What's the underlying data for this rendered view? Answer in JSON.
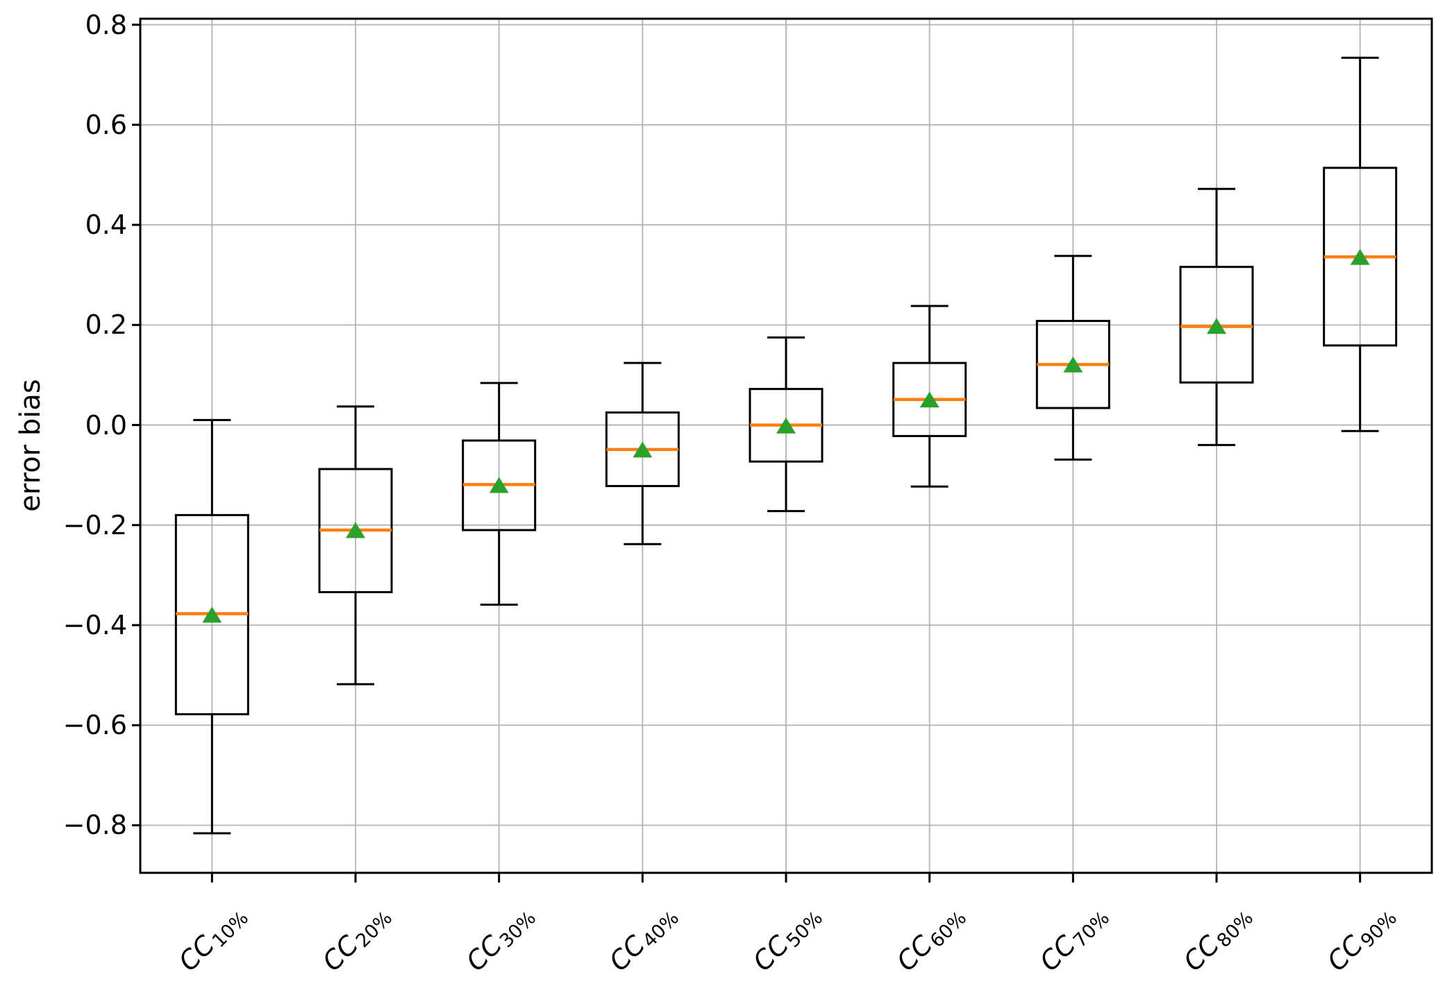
{
  "figure": {
    "background": "#ffffff"
  },
  "chart_data": {
    "type": "boxplot",
    "title": "",
    "xlabel": "",
    "ylabel": "error bias",
    "ylim": [
      -0.895,
      0.812
    ],
    "grid": true,
    "legend": "none",
    "yticks": [
      0.8,
      0.6,
      0.4,
      0.2,
      0.0,
      -0.2,
      -0.4,
      -0.6,
      -0.8
    ],
    "ytick_labels": [
      "0.8",
      "0.6",
      "0.4",
      "0.2",
      "0.0",
      "−0.2",
      "−0.4",
      "−0.6",
      "−0.8"
    ],
    "categories": [
      {
        "base": "CC",
        "sub": "10%"
      },
      {
        "base": "CC",
        "sub": "20%"
      },
      {
        "base": "CC",
        "sub": "30%"
      },
      {
        "base": "CC",
        "sub": "40%"
      },
      {
        "base": "CC",
        "sub": "50%"
      },
      {
        "base": "CC",
        "sub": "60%"
      },
      {
        "base": "CC",
        "sub": "70%"
      },
      {
        "base": "CC",
        "sub": "80%"
      },
      {
        "base": "CC",
        "sub": "90%"
      }
    ],
    "boxes": [
      {
        "label": "CC10%",
        "whislo": -0.816,
        "q1": -0.578,
        "med": -0.377,
        "mean": -0.381,
        "q3": -0.18,
        "whishi": 0.01
      },
      {
        "label": "CC20%",
        "whislo": -0.518,
        "q1": -0.334,
        "med": -0.21,
        "mean": -0.212,
        "q3": -0.088,
        "whishi": 0.037
      },
      {
        "label": "CC30%",
        "whislo": -0.359,
        "q1": -0.21,
        "med": -0.119,
        "mean": -0.122,
        "q3": -0.031,
        "whishi": 0.084
      },
      {
        "label": "CC40%",
        "whislo": -0.238,
        "q1": -0.122,
        "med": -0.049,
        "mean": -0.051,
        "q3": 0.025,
        "whishi": 0.124
      },
      {
        "label": "CC50%",
        "whislo": -0.172,
        "q1": -0.073,
        "med": 0.0,
        "mean": -0.003,
        "q3": 0.072,
        "whishi": 0.175
      },
      {
        "label": "CC60%",
        "whislo": -0.123,
        "q1": -0.022,
        "med": 0.051,
        "mean": 0.049,
        "q3": 0.124,
        "whishi": 0.238
      },
      {
        "label": "CC70%",
        "whislo": -0.069,
        "q1": 0.034,
        "med": 0.121,
        "mean": 0.119,
        "q3": 0.208,
        "whishi": 0.338
      },
      {
        "label": "CC80%",
        "whislo": -0.04,
        "q1": 0.085,
        "med": 0.197,
        "mean": 0.196,
        "q3": 0.316,
        "whishi": 0.472
      },
      {
        "label": "CC90%",
        "whislo": -0.012,
        "q1": 0.159,
        "med": 0.336,
        "mean": 0.334,
        "q3": 0.514,
        "whishi": 0.734
      }
    ],
    "colors": {
      "box_line": "#000000",
      "whisker": "#000000",
      "median": "#ff7f0e",
      "mean_marker": "#2ca02c",
      "grid": "#b2b2b2",
      "spine": "#000000",
      "text": "#000000"
    }
  }
}
